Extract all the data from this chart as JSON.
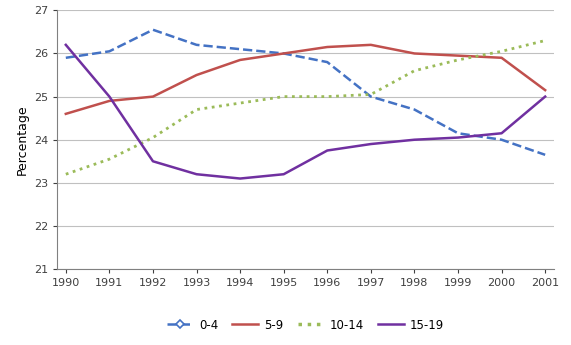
{
  "years": [
    1990,
    1991,
    1992,
    1993,
    1994,
    1995,
    1996,
    1997,
    1998,
    1999,
    2000,
    2001
  ],
  "series": {
    "0-4": [
      25.9,
      26.05,
      26.55,
      26.2,
      26.1,
      26.0,
      25.8,
      25.0,
      24.7,
      24.15,
      24.0,
      23.65
    ],
    "5-9": [
      24.6,
      24.9,
      25.0,
      25.5,
      25.85,
      26.0,
      26.15,
      26.2,
      26.0,
      25.95,
      25.9,
      25.15
    ],
    "10-14": [
      23.2,
      23.55,
      24.05,
      24.7,
      24.85,
      25.0,
      25.0,
      25.05,
      25.6,
      25.85,
      26.05,
      26.3
    ],
    "15-19": [
      26.2,
      25.0,
      23.5,
      23.2,
      23.1,
      23.2,
      23.75,
      23.9,
      24.0,
      24.05,
      24.15,
      25.0
    ]
  },
  "colors": {
    "0-4": "#4472C4",
    "5-9": "#C0504D",
    "10-14": "#9BBB59",
    "15-19": "#7030A0"
  },
  "linestyles": {
    "0-4": "--",
    "5-9": "-",
    "10-14": ":",
    "15-19": "-"
  },
  "ylabel": "Percentage",
  "ylim": [
    21,
    27
  ],
  "yticks": [
    21,
    22,
    23,
    24,
    25,
    26,
    27
  ],
  "legend_order": [
    "0-4",
    "5-9",
    "10-14",
    "15-19"
  ],
  "background_color": "#ffffff",
  "grid_color": "#c0c0c0"
}
